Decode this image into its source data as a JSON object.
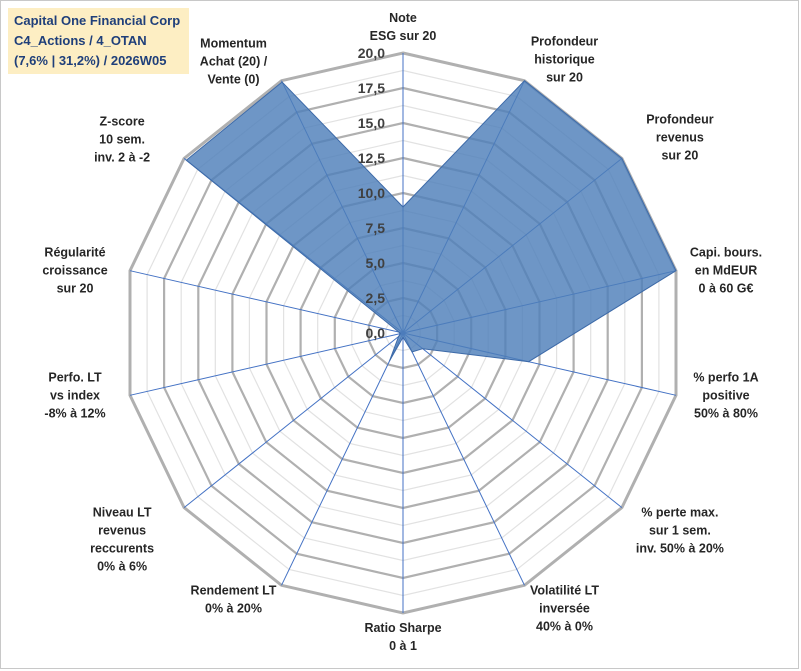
{
  "header": {
    "line1": "Capital One Financial Corp",
    "line2": "C4_Actions / 4_OTAN",
    "line3": "(7,6% | 31,2%) / 2026W05"
  },
  "chart_data": {
    "type": "radar",
    "title": "Capital One Financial Corp",
    "rmin": 0,
    "rmax": 20,
    "ticks": [
      "0,0",
      "2,5",
      "5,0",
      "7,5",
      "10,0",
      "12,5",
      "15,0",
      "17,5",
      "20,0"
    ],
    "tick_values": [
      0,
      2.5,
      5,
      7.5,
      10,
      12.5,
      15,
      17.5,
      20
    ],
    "axes": [
      {
        "lines": [
          "Note",
          "ESG sur 20"
        ],
        "value": 9.0
      },
      {
        "lines": [
          "Profondeur",
          "historique",
          "sur 20"
        ],
        "value": 20.0
      },
      {
        "lines": [
          "Profondeur",
          "revenus",
          "sur 20"
        ],
        "value": 20.0
      },
      {
        "lines": [
          "Capi. bours.",
          "en MdEUR",
          "0 à 60 G€"
        ],
        "value": 20.0
      },
      {
        "lines": [
          "% perfo 1A",
          "positive",
          "50% à 80%"
        ],
        "value": 9.2
      },
      {
        "lines": [
          "% perte max.",
          "sur 1 sem.",
          "inv. 50% à 20%"
        ],
        "value": 1.8
      },
      {
        "lines": [
          "Volatilité LT",
          "inversée",
          "40% à 0%"
        ],
        "value": 1.5
      },
      {
        "lines": [
          "Ratio Sharpe",
          "0 à 1"
        ],
        "value": 0.3
      },
      {
        "lines": [
          "Rendement LT",
          "0% à 20%"
        ],
        "value": 2.2
      },
      {
        "lines": [
          "Niveau LT",
          "revenus",
          "reccurents",
          "0% à 6%"
        ],
        "value": 0.4
      },
      {
        "lines": [
          "Perfo. LT",
          "vs index",
          "-8% à 12%"
        ],
        "value": 0.2
      },
      {
        "lines": [
          "Régularité",
          "croissance",
          "sur 20"
        ],
        "value": 0.3
      },
      {
        "lines": [
          "Z-score",
          "10 sem.",
          "inv. 2 à -2"
        ],
        "value": 19.8
      },
      {
        "lines": [
          "Momentum",
          "Achat (20) /",
          "Vente (0)"
        ],
        "value": 19.9
      }
    ],
    "colors": {
      "fill": "#4e7fba",
      "stroke": "#3d6aa8",
      "grid": "#bfbfbf",
      "spoke": "#4472c4"
    }
  }
}
